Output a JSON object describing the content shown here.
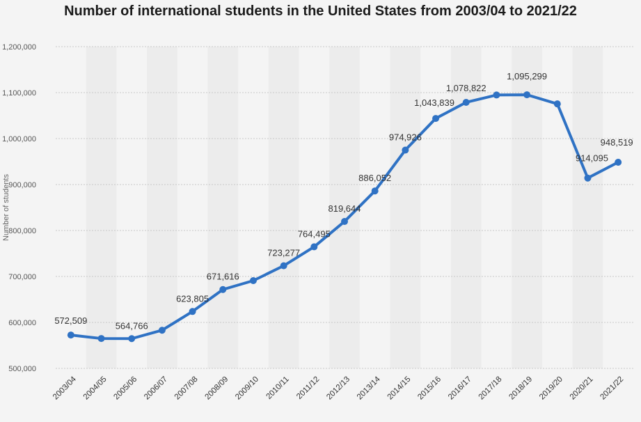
{
  "chart_data": {
    "type": "line",
    "title": "Number of international students in the United States from 2003/04 to 2021/22",
    "xlabel": "",
    "ylabel": "Number of students",
    "categories": [
      "2003/04",
      "2004/05",
      "2005/06",
      "2006/07",
      "2007/08",
      "2008/09",
      "2009/10",
      "2010/11",
      "2011/12",
      "2012/13",
      "2013/14",
      "2014/15",
      "2015/16",
      "2016/17",
      "2017/18",
      "2018/19",
      "2019/20",
      "2020/21",
      "2021/22"
    ],
    "series": [
      {
        "values": [
          572509,
          565039,
          564766,
          582984,
          623805,
          671616,
          690923,
          723277,
          764495,
          819644,
          886052,
          974926,
          1043839,
          1078822,
          1094792,
          1095299,
          1075496,
          914095,
          948519
        ]
      }
    ],
    "data_labels": [
      "572,509",
      "",
      "564,766",
      "",
      "623,805",
      "671,616",
      "",
      "723,277",
      "764,495",
      "819,644",
      "886,052",
      "974,926",
      "1,043,839",
      "1,078,822",
      "",
      "1,095,299",
      "",
      "914,095",
      "948,519"
    ],
    "ylim": [
      500000,
      1200000
    ],
    "yticks": [
      500000,
      600000,
      700000,
      800000,
      900000,
      1000000,
      1100000,
      1200000
    ],
    "ytick_labels": [
      "500,000",
      "600,000",
      "700,000",
      "800,000",
      "900,000",
      "1,000,000",
      "1,100,000",
      "1,200,000"
    ],
    "grid": true,
    "colors": {
      "line": "#2f72c4",
      "band": "#ececec",
      "grid": "#c8c8c8"
    }
  }
}
